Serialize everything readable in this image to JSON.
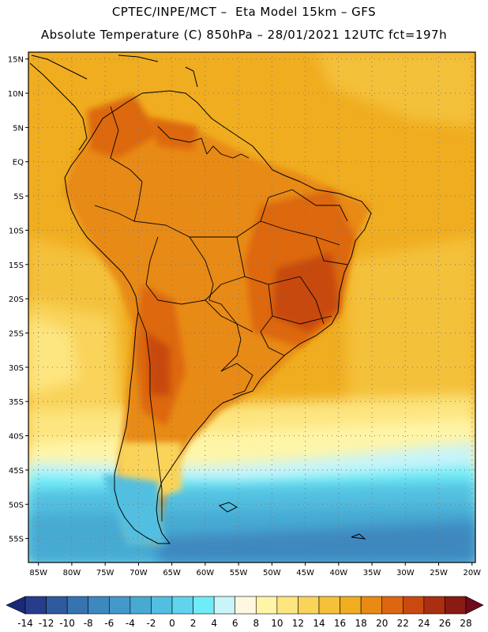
{
  "header": {
    "title_line1": "CPTEC/INPE/MCT –  Eta Model 15km – GFS",
    "title_line2": "Absolute Temperature (C) 850hPa – 28/01/2021 12UTC fct=197h"
  },
  "map": {
    "lat_labels": [
      "15N",
      "10N",
      "5N",
      "EQ",
      "5S",
      "10S",
      "15S",
      "20S",
      "25S",
      "30S",
      "35S",
      "40S",
      "45S",
      "50S",
      "55S"
    ],
    "lon_labels": [
      "85W",
      "80W",
      "75W",
      "70W",
      "65W",
      "60W",
      "55W",
      "50W",
      "45W",
      "40W",
      "35W",
      "30W",
      "25W",
      "20W"
    ],
    "extent": {
      "lon_min": -86.5,
      "lon_max": -19.5,
      "lat_min": -58.5,
      "lat_max": 16.0
    },
    "gridlines": "dotted"
  },
  "colorbar": {
    "labels": [
      "-14",
      "-12",
      "-10",
      "-8",
      "-6",
      "-4",
      "-2",
      "0",
      "2",
      "4",
      "6",
      "8",
      "10",
      "12",
      "14",
      "16",
      "18",
      "20",
      "22",
      "24",
      "26",
      "28"
    ],
    "under_color": "#1a2a78",
    "over_color": "#6e0a1c",
    "colors": [
      "#283c8c",
      "#2f5a9e",
      "#3673b0",
      "#3d88bf",
      "#4299c9",
      "#47aad3",
      "#52bfe0",
      "#5fd4ec",
      "#70ecf6",
      "#c8f4fa",
      "#fff8e0",
      "#fff5a8",
      "#fde580",
      "#f9d35a",
      "#f4c13a",
      "#f0ad20",
      "#e88a14",
      "#dd6710",
      "#c84a10",
      "#aa2e10",
      "#8a1a14"
    ]
  },
  "colors": {
    "ocean_tropical": "#f0ad20",
    "land_warm": "#e88a14",
    "land_hot": "#dd6710",
    "cold_south": "#47aad3"
  }
}
